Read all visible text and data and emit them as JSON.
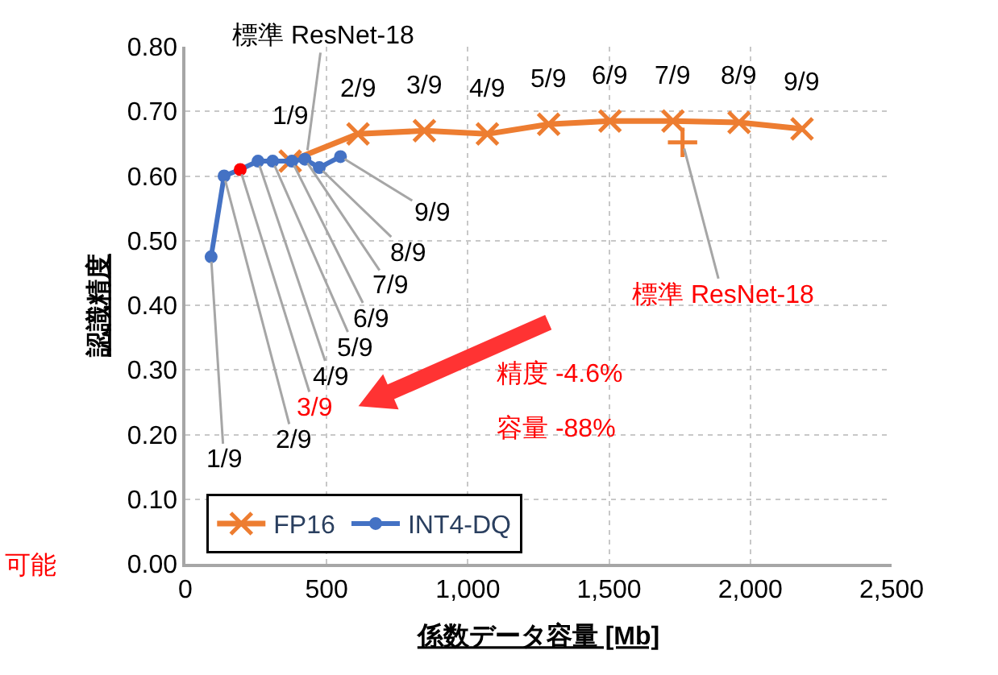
{
  "chart_data": {
    "type": "line",
    "xlabel": "係数データ容量 [Mb]",
    "ylabel": "認識精度",
    "xlim": [
      0,
      2500
    ],
    "xticks": [
      0,
      500,
      {
        "value": 1000,
        "label": "1,000"
      },
      {
        "value": 1500,
        "label": "1,500"
      },
      {
        "value": 2000,
        "label": "2,000"
      },
      {
        "value": 2500,
        "label": "2,500"
      }
    ],
    "ylim": [
      0,
      0.8
    ],
    "yticks": [
      {
        "value": 0,
        "label": "0.00"
      },
      {
        "value": 0.1,
        "label": "0.10"
      },
      {
        "value": 0.2,
        "label": "0.20"
      },
      {
        "value": 0.3,
        "label": "0.30"
      },
      {
        "value": 0.4,
        "label": "0.40"
      },
      {
        "value": 0.5,
        "label": "0.50"
      },
      {
        "value": 0.6,
        "label": "0.60"
      },
      {
        "value": 0.7,
        "label": "0.70"
      },
      {
        "value": 0.8,
        "label": "0.80"
      }
    ],
    "grid": true,
    "legend": "bottom left",
    "series": [
      {
        "name": "FP16",
        "color": "#ed7d31",
        "marker": "cross",
        "x": [
          371,
          611,
          846,
          1069,
          1286,
          1503,
          1726,
          1960,
          2183
        ],
        "values": [
          0.623,
          0.665,
          0.67,
          0.665,
          0.68,
          0.685,
          0.685,
          0.683,
          0.673
        ],
        "value_labels": [
          "1/9",
          "2/9",
          "3/9",
          "4/9",
          "5/9",
          "6/9",
          "7/9",
          "8/9",
          "9/9"
        ]
      },
      {
        "name": "INT4-DQ",
        "color": "#4472c4",
        "marker": "circle",
        "x": [
          91,
          137,
          194,
          257,
          309,
          377,
          423,
          474,
          549
        ],
        "values": [
          0.475,
          0.6,
          0.61,
          0.623,
          0.623,
          0.623,
          0.626,
          0.613,
          0.63
        ],
        "colors": [
          "#4472c4",
          "#4472c4",
          "#ff0000",
          "#4472c4",
          "#4472c4",
          "#4472c4",
          "#4472c4",
          "#4472c4",
          "#4472c4"
        ],
        "value_labels": [
          "1/9",
          "2/9",
          "3/9",
          "4/9",
          "5/9",
          "6/9",
          "7/9",
          "8/9",
          "9/9"
        ]
      },
      {
        "type": "scatter",
        "color": "#ed7d31",
        "marker": "plus",
        "x": [
          1760
        ],
        "values": [
          0.652
        ]
      }
    ],
    "annotations": [
      {
        "text": "標準 ResNet-18",
        "x": 429,
        "y": 0.63
      },
      {
        "text": "標準 ResNet-18",
        "x": 1760,
        "y": 0.652
      },
      "精度 -4.6%",
      "容量 -88%",
      "可能"
    ]
  }
}
